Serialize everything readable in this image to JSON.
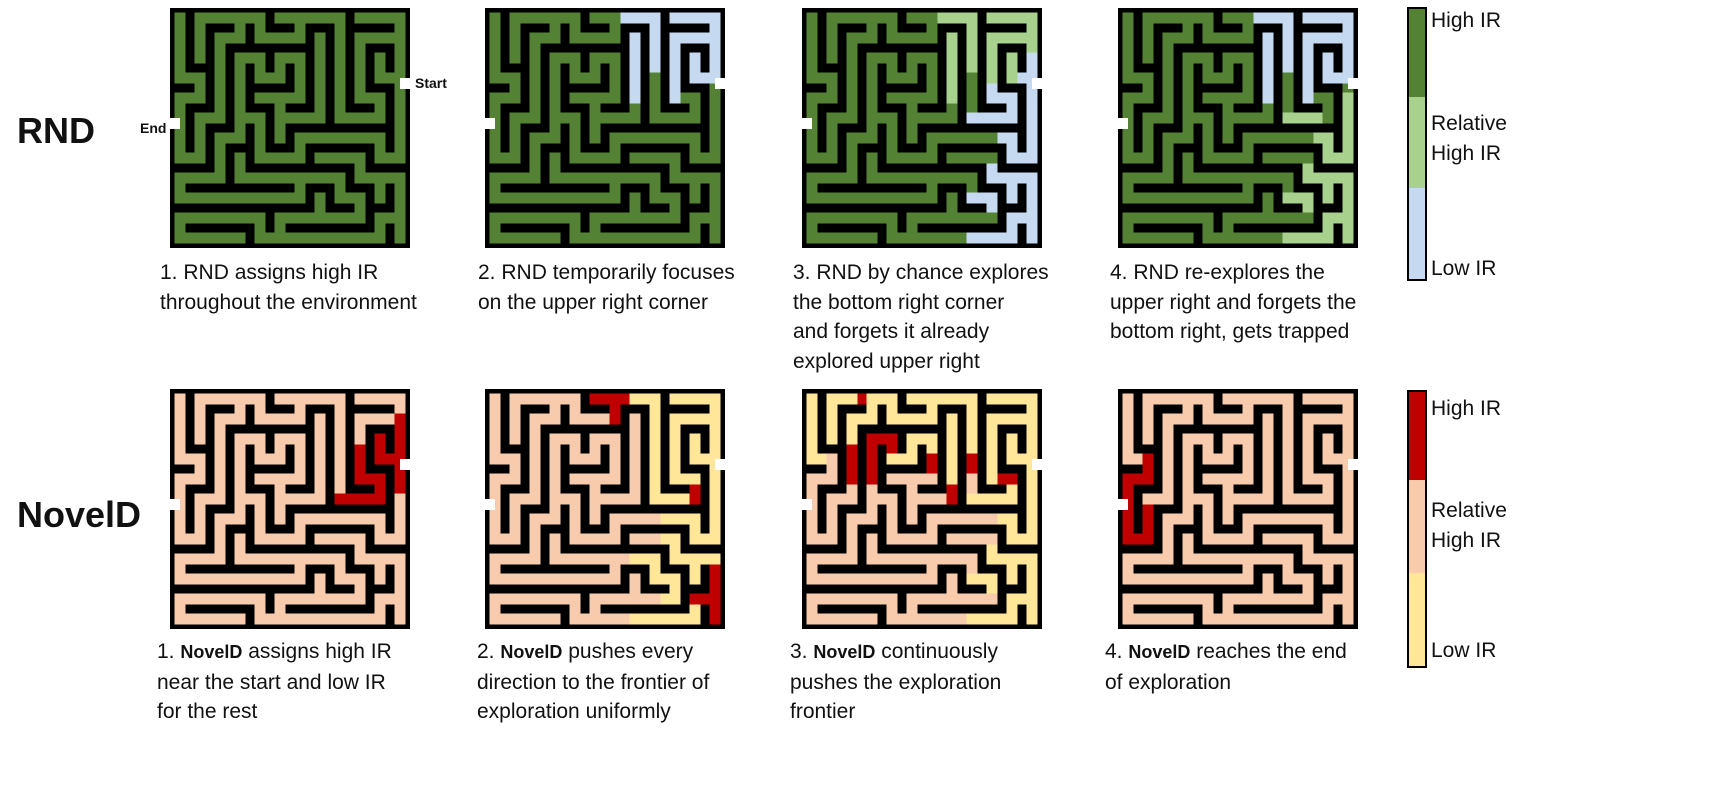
{
  "rows": [
    {
      "id": "rnd",
      "label": "RND",
      "maze_labels": {
        "start": "Start",
        "end": "End"
      },
      "panels": [
        {
          "caption_num": "1. ",
          "caption_method": "",
          "caption_text": "RND assigns high IR\nthroughout the environment",
          "overlays": []
        },
        {
          "caption_num": "2. ",
          "caption_method": "",
          "caption_text": "RND temporarily focuses\non the upper right corner",
          "overlays": [
            {
              "color": "#c5d9f0",
              "region": "upper-right"
            }
          ]
        },
        {
          "caption_num": "3. ",
          "caption_method": "",
          "caption_text": "RND by chance explores\nthe bottom right corner\nand forgets it already\nexplored upper right",
          "overlays": [
            {
              "color": "#a9d18e",
              "region": "upper-right"
            },
            {
              "color": "#c5d9f0",
              "region": "right-column"
            }
          ]
        },
        {
          "caption_num": "4. ",
          "caption_method": "",
          "caption_text": "RND re-explores the\nupper right and forgets the\nbottom right, gets trapped",
          "overlays": [
            {
              "color": "#c5d9f0",
              "region": "upper-right"
            },
            {
              "color": "#a9d18e",
              "region": "bottom-right"
            }
          ]
        }
      ],
      "legend": {
        "colors": {
          "high": "#548235",
          "relative": "#a9d18e",
          "low": "#c5d9f0"
        },
        "labels": {
          "high": "High IR",
          "relative": "Relative\nHigh IR",
          "low": "Low IR"
        }
      },
      "base_color": "#548235"
    },
    {
      "id": "noveld",
      "label": "NovelD",
      "maze_labels": {
        "start": "",
        "end": ""
      },
      "panels": [
        {
          "caption_num": "1. ",
          "caption_method": "NovelD",
          "caption_text": " assigns high IR\nnear the start and low IR\nfor the rest",
          "overlays": [
            {
              "color": "#c00000",
              "region": "near-start"
            }
          ]
        },
        {
          "caption_num": "2. ",
          "caption_method": "NovelD",
          "caption_text": " pushes every\ndirection to the frontier of\nexploration uniformly",
          "overlays": [
            {
              "color": "#ffe699",
              "region": "right-half"
            },
            {
              "color": "#c00000",
              "region": "frontier-a"
            }
          ]
        },
        {
          "caption_num": "3. ",
          "caption_method": "NovelD",
          "caption_text": " continuously\npushes the exploration\nfrontier",
          "overlays": [
            {
              "color": "#ffe699",
              "region": "top-and-right"
            },
            {
              "color": "#c00000",
              "region": "frontier-b"
            }
          ]
        },
        {
          "caption_num": "4. ",
          "caption_method": "NovelD",
          "caption_text": " reaches the end\nof exploration",
          "overlays": [
            {
              "color": "#c00000",
              "region": "near-end"
            }
          ]
        }
      ],
      "legend": {
        "colors": {
          "high": "#c00000",
          "relative": "#f8cbad",
          "low": "#ffe699"
        },
        "labels": {
          "high": "High IR",
          "relative": "Relative\nHigh IR",
          "low": "Low IR"
        }
      },
      "base_color": "#f8cbad"
    }
  ]
}
